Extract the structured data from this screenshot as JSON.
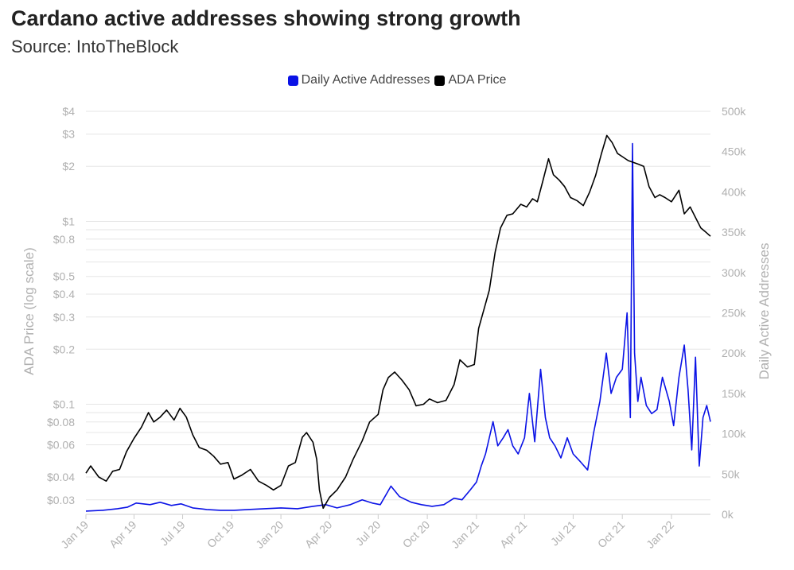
{
  "header": {
    "title": "Cardano active addresses showing strong growth",
    "subtitle": "Source: IntoTheBlock"
  },
  "legend": [
    {
      "label": "Daily Active Addresses",
      "color": "#0a12e6"
    },
    {
      "label": "ADA Price",
      "color": "#000000"
    }
  ],
  "chart_data": {
    "type": "line",
    "title": "Cardano active addresses showing strong growth",
    "subtitle": "Source: IntoTheBlock",
    "x_ticks": [
      "Jan 19",
      "Apr 19",
      "Jul 19",
      "Oct 19",
      "Jan 20",
      "Apr 20",
      "Jul 20",
      "Oct 20",
      "Jan 21",
      "Apr 21",
      "Jul 21",
      "Oct 21",
      "Jan 22"
    ],
    "x_tick_dates": [
      "2019-01-01",
      "2019-04-01",
      "2019-07-01",
      "2019-10-01",
      "2020-01-01",
      "2020-04-01",
      "2020-07-01",
      "2020-10-01",
      "2021-01-01",
      "2021-04-01",
      "2021-07-01",
      "2021-10-01",
      "2022-01-01"
    ],
    "xlim": [
      "2019-01-01",
      "2022-03-15"
    ],
    "left_axis": {
      "label": "ADA Price (log scale)",
      "scale": "log",
      "ylim": [
        0.025,
        4
      ],
      "ticks": [
        0.03,
        0.04,
        0.06,
        0.08,
        0.1,
        0.2,
        0.3,
        0.4,
        0.5,
        0.8,
        1,
        2,
        3,
        4
      ],
      "tick_labels": [
        "$0.03",
        "$0.04",
        "$0.06",
        "$0.08",
        "$0.1",
        "$0.2",
        "$0.3",
        "$0.4",
        "$0.5",
        "$0.8",
        "$1",
        "$2",
        "$3",
        "$4"
      ],
      "minor_gridlines": [
        0.07,
        0.09,
        0.6,
        0.7,
        0.9
      ]
    },
    "right_axis": {
      "label": "Daily Active Addresses",
      "scale": "linear",
      "ylim": [
        0,
        500000
      ],
      "ticks": [
        0,
        50000,
        100000,
        150000,
        200000,
        250000,
        300000,
        350000,
        400000,
        450000,
        500000
      ],
      "tick_labels": [
        "0k",
        "50k",
        "100k",
        "150k",
        "200k",
        "250k",
        "300k",
        "350k",
        "400k",
        "450k",
        "500k"
      ]
    },
    "grid": true,
    "legend_position": "top",
    "series": [
      {
        "name": "ADA Price",
        "axis": "left",
        "color": "#000000",
        "x": [
          "2019-01-01",
          "2019-01-10",
          "2019-01-25",
          "2019-02-08",
          "2019-02-20",
          "2019-03-05",
          "2019-03-18",
          "2019-04-01",
          "2019-04-15",
          "2019-04-28",
          "2019-05-08",
          "2019-05-20",
          "2019-06-01",
          "2019-06-15",
          "2019-06-26",
          "2019-07-08",
          "2019-07-20",
          "2019-08-01",
          "2019-08-15",
          "2019-08-28",
          "2019-09-10",
          "2019-09-24",
          "2019-10-05",
          "2019-10-20",
          "2019-11-05",
          "2019-11-20",
          "2019-12-05",
          "2019-12-18",
          "2020-01-01",
          "2020-01-15",
          "2020-01-28",
          "2020-02-10",
          "2020-02-18",
          "2020-03-01",
          "2020-03-08",
          "2020-03-13",
          "2020-03-20",
          "2020-04-01",
          "2020-04-15",
          "2020-05-01",
          "2020-05-15",
          "2020-06-01",
          "2020-06-15",
          "2020-07-01",
          "2020-07-10",
          "2020-07-20",
          "2020-08-01",
          "2020-08-15",
          "2020-08-28",
          "2020-09-10",
          "2020-09-24",
          "2020-10-05",
          "2020-10-20",
          "2020-11-05",
          "2020-11-20",
          "2020-12-01",
          "2020-12-15",
          "2020-12-28",
          "2021-01-05",
          "2021-01-15",
          "2021-01-25",
          "2021-02-05",
          "2021-02-15",
          "2021-02-27",
          "2021-03-10",
          "2021-03-25",
          "2021-04-05",
          "2021-04-16",
          "2021-04-25",
          "2021-05-05",
          "2021-05-16",
          "2021-05-25",
          "2021-06-05",
          "2021-06-15",
          "2021-06-26",
          "2021-07-08",
          "2021-07-20",
          "2021-08-01",
          "2021-08-12",
          "2021-08-23",
          "2021-09-02",
          "2021-09-12",
          "2021-09-22",
          "2021-10-02",
          "2021-10-12",
          "2021-10-22",
          "2021-11-01",
          "2021-11-10",
          "2021-11-20",
          "2021-12-01",
          "2021-12-10",
          "2021-12-20",
          "2022-01-01",
          "2022-01-15",
          "2022-01-25",
          "2022-02-05",
          "2022-02-15",
          "2022-02-25",
          "2022-03-05",
          "2022-03-15"
        ],
        "y": [
          0.042,
          0.046,
          0.04,
          0.038,
          0.043,
          0.044,
          0.055,
          0.065,
          0.075,
          0.09,
          0.08,
          0.085,
          0.093,
          0.082,
          0.095,
          0.085,
          0.068,
          0.058,
          0.056,
          0.052,
          0.047,
          0.048,
          0.039,
          0.041,
          0.044,
          0.038,
          0.036,
          0.034,
          0.036,
          0.046,
          0.048,
          0.066,
          0.07,
          0.062,
          0.05,
          0.034,
          0.027,
          0.031,
          0.034,
          0.04,
          0.05,
          0.063,
          0.08,
          0.088,
          0.12,
          0.14,
          0.15,
          0.135,
          0.12,
          0.098,
          0.1,
          0.107,
          0.102,
          0.105,
          0.128,
          0.175,
          0.16,
          0.165,
          0.26,
          0.33,
          0.42,
          0.68,
          0.92,
          1.08,
          1.1,
          1.24,
          1.2,
          1.33,
          1.28,
          1.65,
          2.2,
          1.8,
          1.68,
          1.55,
          1.35,
          1.3,
          1.22,
          1.45,
          1.78,
          2.35,
          2.95,
          2.7,
          2.35,
          2.25,
          2.15,
          2.1,
          2.05,
          2.0,
          1.55,
          1.35,
          1.4,
          1.35,
          1.28,
          1.48,
          1.1,
          1.2,
          1.05,
          0.92,
          0.88,
          0.83
        ]
      },
      {
        "name": "Daily Active Addresses",
        "axis": "right",
        "color": "#0a12e6",
        "x": [
          "2019-01-01",
          "2019-02-01",
          "2019-03-01",
          "2019-03-20",
          "2019-04-05",
          "2019-05-01",
          "2019-05-20",
          "2019-06-10",
          "2019-06-28",
          "2019-07-20",
          "2019-08-15",
          "2019-09-10",
          "2019-10-05",
          "2019-11-01",
          "2019-12-01",
          "2020-01-01",
          "2020-02-01",
          "2020-03-01",
          "2020-03-25",
          "2020-04-15",
          "2020-05-10",
          "2020-06-01",
          "2020-06-20",
          "2020-07-05",
          "2020-07-25",
          "2020-08-10",
          "2020-09-01",
          "2020-09-20",
          "2020-10-10",
          "2020-11-01",
          "2020-11-20",
          "2020-12-05",
          "2020-12-20",
          "2021-01-01",
          "2021-01-10",
          "2021-01-18",
          "2021-02-01",
          "2021-02-10",
          "2021-02-20",
          "2021-03-01",
          "2021-03-10",
          "2021-03-20",
          "2021-04-01",
          "2021-04-10",
          "2021-04-20",
          "2021-05-01",
          "2021-05-10",
          "2021-05-18",
          "2021-05-28",
          "2021-06-08",
          "2021-06-20",
          "2021-07-01",
          "2021-07-15",
          "2021-07-28",
          "2021-08-08",
          "2021-08-20",
          "2021-09-01",
          "2021-09-10",
          "2021-09-20",
          "2021-10-01",
          "2021-10-10",
          "2021-10-16",
          "2021-10-20",
          "2021-10-24",
          "2021-10-30",
          "2021-11-05",
          "2021-11-15",
          "2021-11-25",
          "2021-12-05",
          "2021-12-15",
          "2021-12-28",
          "2022-01-05",
          "2022-01-15",
          "2022-01-25",
          "2022-02-01",
          "2022-02-08",
          "2022-02-15",
          "2022-02-22",
          "2022-03-01",
          "2022-03-08",
          "2022-03-15"
        ],
        "y": [
          4000,
          5000,
          7000,
          9000,
          14000,
          12000,
          15000,
          11000,
          13000,
          8000,
          6000,
          5000,
          5000,
          6000,
          7000,
          8000,
          7000,
          10000,
          12000,
          8000,
          12000,
          18000,
          14000,
          12000,
          35000,
          22000,
          15000,
          12000,
          10000,
          12000,
          20000,
          18000,
          30000,
          40000,
          60000,
          75000,
          115000,
          85000,
          95000,
          105000,
          85000,
          75000,
          95000,
          150000,
          90000,
          180000,
          120000,
          95000,
          85000,
          70000,
          95000,
          75000,
          65000,
          55000,
          100000,
          140000,
          200000,
          150000,
          170000,
          180000,
          250000,
          120000,
          460000,
          200000,
          140000,
          170000,
          135000,
          125000,
          130000,
          170000,
          140000,
          110000,
          170000,
          210000,
          155000,
          80000,
          195000,
          60000,
          120000,
          135000,
          115000
        ]
      }
    ]
  }
}
